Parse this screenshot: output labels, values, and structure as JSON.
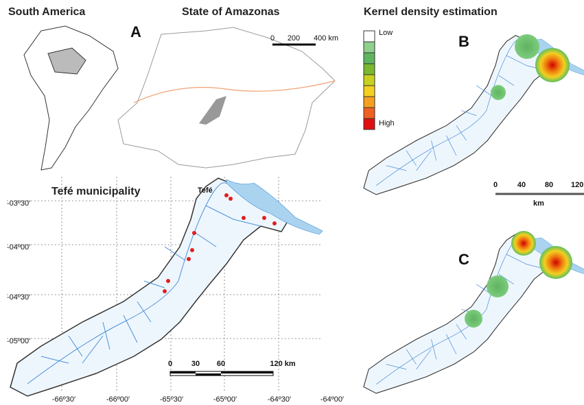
{
  "south_america": {
    "title": "South America"
  },
  "amazonas": {
    "title": "State of Amazonas",
    "panel_label": "A",
    "scale_labels": [
      "0",
      "200",
      "400 km"
    ]
  },
  "kde": {
    "title": "Kernel density estimation",
    "legend": {
      "low": "Low",
      "high": "High"
    },
    "panels": [
      "B",
      "C"
    ],
    "scale_labels": [
      "0",
      "40",
      "80",
      "120"
    ],
    "scale_unit": "km"
  },
  "tefe": {
    "title": "Tefé municipality",
    "city_label": "Tefé",
    "latitudes": [
      "-03º30′",
      "-04º00′",
      "-04º30′",
      "-05º00′"
    ],
    "longitudes": [
      "-66º30′",
      "-66º00′",
      "-65º30′",
      "-65º00′",
      "-64º30′",
      "-64º00′"
    ],
    "scale_labels": [
      "0",
      "30",
      "60",
      "120 km"
    ]
  }
}
